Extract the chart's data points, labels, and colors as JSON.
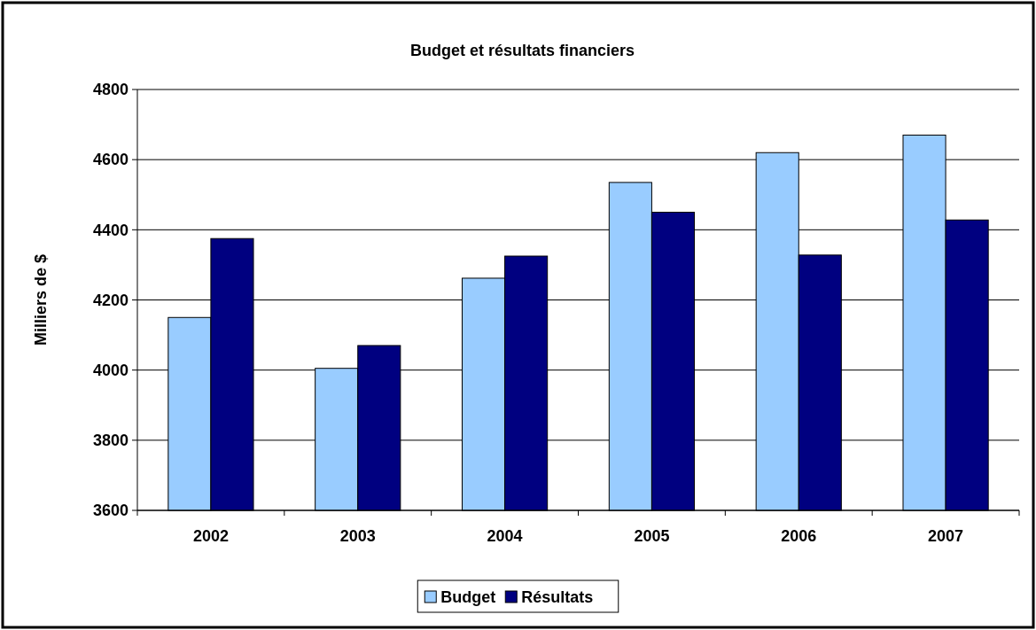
{
  "chart_data": {
    "type": "bar",
    "title": "Budget et résultats financiers",
    "ylabel": "Milliers de $",
    "categories": [
      "2002",
      "2003",
      "2004",
      "2005",
      "2006",
      "2007"
    ],
    "series": [
      {
        "name": "Budget",
        "color": "#99ccff",
        "values": [
          4150,
          4005,
          4262,
          4535,
          4620,
          4670
        ]
      },
      {
        "name": "Résultats",
        "color": "#000080",
        "values": [
          4375,
          4070,
          4325,
          4450,
          4328,
          4428
        ]
      }
    ],
    "ylim": [
      3600,
      4800
    ],
    "yticks": [
      3600,
      3800,
      4000,
      4200,
      4400,
      4600,
      4800
    ],
    "grid": "y",
    "legend": "bottom"
  }
}
